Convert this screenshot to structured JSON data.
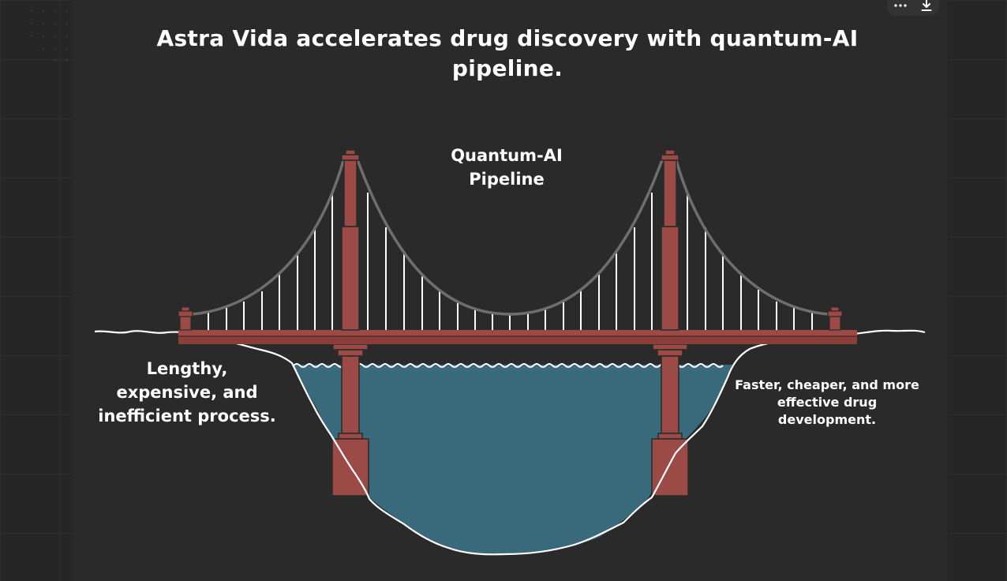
{
  "title": "Astra Vida accelerates drug discovery with quantum-AI pipeline.",
  "bridge": {
    "label": "Quantum-AI Pipeline"
  },
  "left_side": {
    "label": "Lengthy, expensive, and inefficient process."
  },
  "right_side": {
    "label": "Faster, cheaper, and more effective drug development."
  },
  "toolbar": {
    "more_icon": "more-horizontal-icon",
    "download_icon": "download-icon"
  },
  "colors": {
    "background": "#262626",
    "panel": "#2a2a2a",
    "tower": "#9b4a45",
    "water": "#386a7b",
    "cable": "#6e6e6e",
    "outline": "#ffffff"
  }
}
